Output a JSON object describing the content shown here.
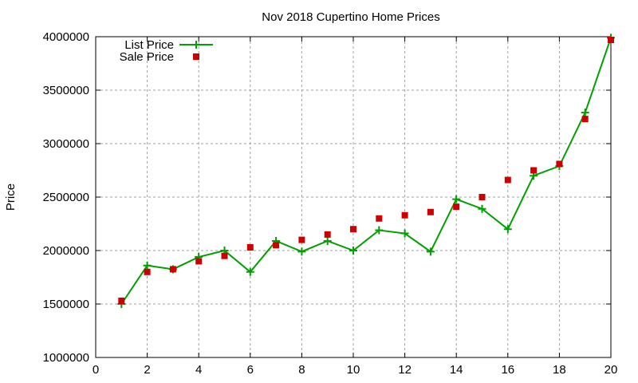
{
  "chart_data": {
    "type": "line",
    "title": "Nov 2018 Cupertino Home Prices",
    "xlabel": "",
    "ylabel": "Price",
    "xlim": [
      0,
      20
    ],
    "ylim": [
      1000000,
      4000000
    ],
    "x_ticks": [
      0,
      2,
      4,
      6,
      8,
      10,
      12,
      14,
      16,
      18,
      20
    ],
    "y_ticks": [
      1000000,
      1500000,
      2000000,
      2500000,
      3000000,
      3500000,
      4000000
    ],
    "grid": true,
    "legend_position": "top-left",
    "x": [
      1,
      2,
      3,
      4,
      5,
      6,
      7,
      8,
      9,
      10,
      11,
      12,
      13,
      14,
      15,
      16,
      17,
      18,
      19,
      20
    ],
    "series": [
      {
        "name": "List Price",
        "style": "line+plus",
        "color": "#00a000",
        "values": [
          1500000,
          1860000,
          1825000,
          1940000,
          2000000,
          1800000,
          2090000,
          1990000,
          2090000,
          2000000,
          2190000,
          2160000,
          1990000,
          2480000,
          2390000,
          2200000,
          2700000,
          2790000,
          3290000,
          3990000
        ]
      },
      {
        "name": "Sale Price",
        "style": "square",
        "color": "#cc0000",
        "values": [
          1530000,
          1800000,
          1825000,
          1900000,
          1950000,
          2030000,
          2050000,
          2100000,
          2150000,
          2200000,
          2300000,
          2330000,
          2360000,
          2410000,
          2500000,
          2660000,
          2750000,
          2810000,
          3230000,
          3970000
        ]
      }
    ]
  }
}
